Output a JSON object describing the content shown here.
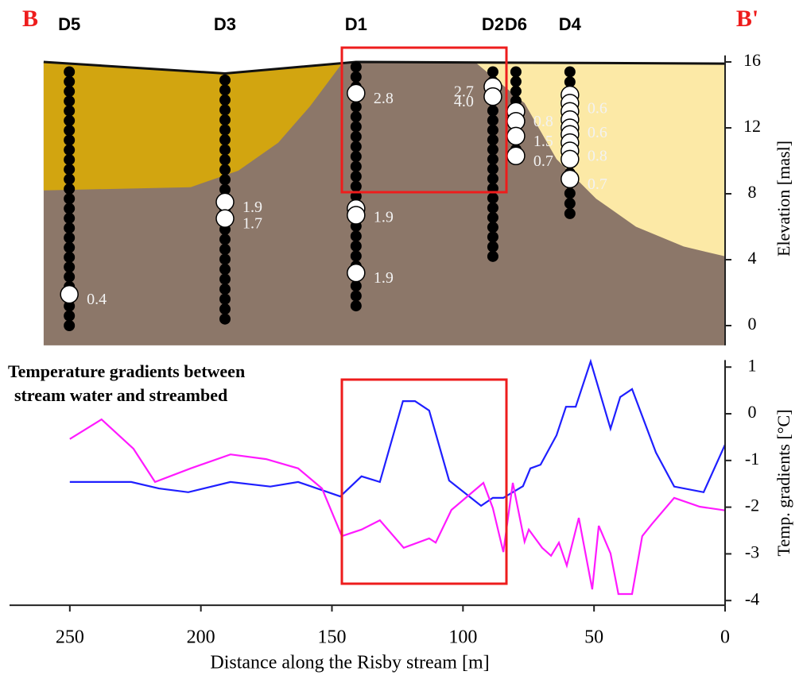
{
  "chart_data": [
    {
      "type": "section",
      "left_label": "B",
      "right_label": "B'",
      "ylabel": "Elevation [masl]",
      "xlim": [
        273,
        0
      ],
      "ylim": [
        -1.2,
        16.4
      ],
      "yticks": [
        0,
        4,
        8,
        12,
        16
      ],
      "surface": {
        "color": "#111111",
        "x": [
          260,
          190.8,
          140.8,
          0
        ],
        "y": [
          16.0,
          15.3,
          16.0,
          15.9
        ]
      },
      "layers": [
        {
          "color": "#8c7769",
          "x": [
            260,
            190.8,
            140.8,
            0,
            0,
            260
          ],
          "y": [
            16.0,
            15.3,
            16.0,
            15.9,
            -1.2,
            -1.2
          ]
        },
        {
          "color": "#d2a510",
          "x": [
            260,
            203.9,
            185.7,
            170.5,
            158.4,
            146.2,
            190.8,
            260
          ],
          "y": [
            8.2,
            8.4,
            9.4,
            11.1,
            13.3,
            15.9,
            15.3,
            16.0
          ]
        },
        {
          "color": "#fce9a6",
          "x": [
            94.7,
            76.5,
            64.3,
            49.2,
            34,
            15.8,
            0,
            0
          ],
          "y": [
            15.9,
            13.5,
            10.1,
            7.7,
            6.0,
            4.8,
            4.2,
            15.9
          ]
        }
      ],
      "boreholes": [
        {
          "name": "D5",
          "x": 250.2,
          "top": 15.4,
          "bottom": 0,
          "groups": [
            {
              "elevations": [
                1.9
              ],
              "label": "0.4"
            }
          ]
        },
        {
          "name": "D3",
          "x": 190.8,
          "top": 14.9,
          "bottom": 0.4,
          "groups": [
            {
              "elevations": [
                7.5
              ],
              "label": "1.9"
            },
            {
              "elevations": [
                6.5
              ],
              "label": "1.7"
            }
          ]
        },
        {
          "name": "D1",
          "x": 140.8,
          "top": 15.7,
          "bottom": 1.2,
          "groups": [
            {
              "elevations": [
                14.1
              ],
              "label": "2.8"
            },
            {
              "elevations": [
                7.1,
                6.7
              ],
              "label": "1.9"
            },
            {
              "elevations": [
                3.2
              ],
              "label": "1.9"
            }
          ]
        },
        {
          "name": "D2",
          "x": 88.6,
          "top": 15.4,
          "bottom": 4.2,
          "groups": [
            {
              "elevations": [
                14.5
              ],
              "label": "2.7"
            },
            {
              "elevations": [
                13.9
              ],
              "label": "4.0"
            }
          ]
        },
        {
          "name": "D6",
          "x": 79.8,
          "top": 15.4,
          "bottom": 10.1,
          "groups": [
            {
              "elevations": [
                13.0,
                12.4
              ],
              "label": "0.8"
            },
            {
              "elevations": [
                11.5
              ],
              "label": "1.5"
            },
            {
              "elevations": [
                10.3
              ],
              "label": "0.7"
            }
          ]
        },
        {
          "name": "D4",
          "x": 59.2,
          "top": 15.4,
          "bottom": 6.8,
          "groups": [
            {
              "elevations": [
                14.0,
                13.5,
                13.0
              ],
              "label": "0.6"
            },
            {
              "elevations": [
                12.5,
                12.0,
                11.6
              ],
              "label": "0.6"
            },
            {
              "elevations": [
                11.1,
                10.6,
                10.1
              ],
              "label": "0.8"
            },
            {
              "elevations": [
                8.9
              ],
              "label": "0.7"
            }
          ]
        }
      ]
    },
    {
      "type": "line",
      "title": [
        "Temperature gradients between",
        "stream water and streambed"
      ],
      "xlabel": "Distance along the Risby stream [m]",
      "ylabel": "Temp. gradients [°C]",
      "xlim": [
        273,
        0
      ],
      "xticks": [
        250,
        200,
        150,
        100,
        50,
        0
      ],
      "ylim": [
        -4.1,
        1.15
      ],
      "yticks": [
        1,
        0,
        -1,
        -2,
        -3,
        -4
      ],
      "series": [
        {
          "color": "#1f1fff",
          "x": [
            250,
            226.6,
            216,
            204.8,
            188.7,
            173.5,
            162.9,
            146.8,
            138.7,
            131.7,
            122.9,
            118.3,
            112.9,
            105.3,
            93.1,
            88.6,
            84.6,
            77.1,
            74.3,
            70.4,
            64.3,
            60.7,
            57,
            51.3,
            43.7,
            40,
            35.5,
            26.4,
            19.4,
            8.2,
            0
          ],
          "values": [
            -1.46,
            -1.46,
            -1.6,
            -1.68,
            -1.46,
            -1.56,
            -1.46,
            -1.77,
            -1.34,
            -1.46,
            0.27,
            0.27,
            0.07,
            -1.43,
            -1.97,
            -1.8,
            -1.8,
            -1.55,
            -1.17,
            -1.09,
            -0.46,
            0.15,
            0.15,
            1.12,
            -0.32,
            0.36,
            0.53,
            -0.83,
            -1.56,
            -1.68,
            -0.66
          ]
        },
        {
          "color": "#ff1aff",
          "x": [
            250,
            237.9,
            225.7,
            217.5,
            203.9,
            188.7,
            175.1,
            162.9,
            153.8,
            146.2,
            138.7,
            131.7,
            122.6,
            112.9,
            110.4,
            104.4,
            92.2,
            88.6,
            84.6,
            81,
            76.5,
            74.9,
            69.8,
            66.4,
            63.4,
            60.4,
            55.8,
            50.7,
            48.2,
            43.7,
            40.7,
            35.5,
            31.6,
            27.9,
            19.4,
            9.7,
            0
          ],
          "values": [
            -0.54,
            -0.12,
            -0.75,
            -1.46,
            -1.17,
            -0.87,
            -0.97,
            -1.17,
            -1.6,
            -2.62,
            -2.48,
            -2.28,
            -2.87,
            -2.67,
            -2.76,
            -2.06,
            -1.48,
            -2.02,
            -2.96,
            -1.48,
            -2.74,
            -2.48,
            -2.87,
            -3.04,
            -2.76,
            -3.25,
            -2.23,
            -3.76,
            -2.4,
            -2.99,
            -3.86,
            -3.86,
            -2.62,
            -2.36,
            -1.8,
            -1.99,
            -2.07
          ]
        }
      ]
    }
  ]
}
